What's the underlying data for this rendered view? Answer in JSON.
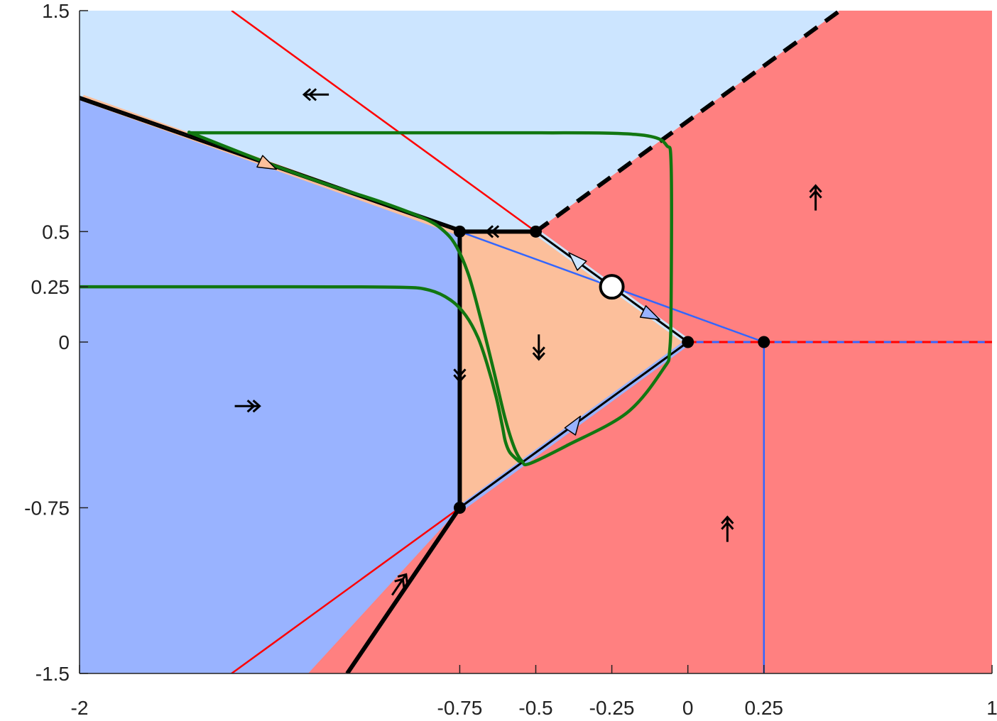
{
  "chart_data": {
    "type": "phase-portrait",
    "xlim": [
      -2,
      1
    ],
    "ylim": [
      -1.5,
      1.5
    ],
    "xticks": [
      {
        "value": -2,
        "label": "-2"
      },
      {
        "value": -0.75,
        "label": "-0.75"
      },
      {
        "value": -0.5,
        "label": "-0.5"
      },
      {
        "value": -0.25,
        "label": "-0.25"
      },
      {
        "value": 0,
        "label": "0"
      },
      {
        "value": 0.25,
        "label": "0.25"
      },
      {
        "value": 1,
        "label": "1"
      }
    ],
    "yticks": [
      {
        "value": 1.5,
        "label": "1.5"
      },
      {
        "value": 0.5,
        "label": "0.5"
      },
      {
        "value": 0.25,
        "label": "0.25"
      },
      {
        "value": 0,
        "label": "0"
      },
      {
        "value": -0.75,
        "label": "-0.75"
      },
      {
        "value": -1.5,
        "label": "-1.5"
      }
    ],
    "grid": false,
    "colors": {
      "light_blue_region": "#cce5ff",
      "blue_region": "#99b3ff",
      "red_region": "#ff8080",
      "peach_region": "#fcbf9b",
      "red_line": "#ff0000",
      "blue_line": "#3366ff",
      "trajectory": "#117711",
      "boundary": "#000000"
    },
    "regions": [
      {
        "name": "light-blue-region",
        "color": "#cce5ff",
        "points": [
          [
            -2,
            1.5
          ],
          [
            0.5,
            1.5
          ],
          [
            -0.5,
            0.5
          ],
          [
            -0.75,
            0.5
          ],
          [
            -2,
            1.1
          ]
        ]
      },
      {
        "name": "red-region",
        "color": "#ff8080",
        "points": [
          [
            0.5,
            1.5
          ],
          [
            1,
            1.5
          ],
          [
            1,
            -1.5
          ],
          [
            -1.25,
            -1.5
          ],
          [
            -0.75,
            -0.75
          ],
          [
            0,
            0
          ],
          [
            -0.5,
            0.5
          ]
        ]
      },
      {
        "name": "blue-region",
        "color": "#99b3ff",
        "points": [
          [
            -2,
            1.1
          ],
          [
            -0.75,
            0.5
          ],
          [
            -0.75,
            -0.75
          ],
          [
            -1.25,
            -1.5
          ],
          [
            -2,
            -1.5
          ]
        ]
      },
      {
        "name": "peach-region",
        "color": "#fcbf9b",
        "points": [
          [
            -0.75,
            0.5
          ],
          [
            -0.5,
            0.5
          ],
          [
            0,
            0
          ],
          [
            -0.75,
            -0.75
          ]
        ]
      }
    ],
    "lines": [
      {
        "name": "red-line-upper",
        "color": "#ff0000",
        "width": 2.5,
        "dash": "",
        "points": [
          [
            -1.5,
            1.5
          ],
          [
            -0.5,
            0.5
          ]
        ]
      },
      {
        "name": "red-line-lower",
        "color": "#ff0000",
        "width": 2.5,
        "dash": "",
        "points": [
          [
            -1.5,
            -1.5
          ],
          [
            -0.75,
            -0.75
          ]
        ]
      },
      {
        "name": "blue-line-diagonal",
        "color": "#3366ff",
        "width": 2.5,
        "dash": "",
        "points": [
          [
            -0.75,
            0.5
          ],
          [
            0.25,
            0
          ]
        ]
      },
      {
        "name": "blue-line-vertical",
        "color": "#3366ff",
        "width": 2.5,
        "dash": "",
        "points": [
          [
            0.25,
            0
          ],
          [
            0.25,
            -1.5
          ]
        ]
      },
      {
        "name": "dashed-red-blue-axis",
        "color": "#3366ff",
        "width": 3,
        "dash": "",
        "points": [
          [
            0,
            0
          ],
          [
            1,
            0
          ]
        ]
      },
      {
        "name": "dashed-red-axis",
        "color": "#ff0000",
        "width": 3,
        "dash": "12 10",
        "points": [
          [
            0,
            0
          ],
          [
            1,
            0
          ]
        ]
      },
      {
        "name": "black-dashed-boundary",
        "color": "#000000",
        "width": 6,
        "dash": "22 14",
        "points": [
          [
            -0.5,
            0.5
          ],
          [
            0.5,
            1.5
          ]
        ]
      },
      {
        "name": "sliding-segment-upper-left",
        "color": "#fcbf9b",
        "width": 9,
        "dash": "",
        "points": [
          [
            -1.99,
            1.105
          ],
          [
            -0.76,
            0.5
          ]
        ]
      },
      {
        "name": "sliding-segment-upper-right",
        "color": "#cce5ff",
        "width": 9,
        "dash": "",
        "points": [
          [
            -0.49,
            0.49
          ],
          [
            -0.01,
            0.01
          ]
        ]
      },
      {
        "name": "sliding-segment-lower",
        "color": "#99b3ff",
        "width": 9,
        "dash": "",
        "points": [
          [
            -0.74,
            -0.745
          ],
          [
            -0.01,
            -0.01
          ]
        ]
      },
      {
        "name": "black-boundary-upper-left",
        "color": "#000000",
        "width": 3,
        "dash": "",
        "points": [
          [
            -2,
            1.1
          ],
          [
            -0.75,
            0.5
          ]
        ]
      },
      {
        "name": "black-boundary-upper-left-2",
        "color": "#000000",
        "width": 3,
        "dash": "",
        "points": [
          [
            -2,
            1.11
          ],
          [
            -0.75,
            0.51
          ]
        ]
      },
      {
        "name": "black-boundary-upper-right",
        "color": "#000000",
        "width": 3,
        "dash": "",
        "points": [
          [
            -0.5,
            0.5
          ],
          [
            0,
            0
          ]
        ]
      },
      {
        "name": "black-boundary-lower",
        "color": "#000000",
        "width": 3,
        "dash": "",
        "points": [
          [
            -0.75,
            -0.75
          ],
          [
            0,
            0
          ]
        ]
      },
      {
        "name": "black-thick-top",
        "color": "#000000",
        "width": 6,
        "dash": "",
        "points": [
          [
            -0.75,
            0.5
          ],
          [
            -0.5,
            0.5
          ]
        ]
      },
      {
        "name": "black-thick-vertical",
        "color": "#000000",
        "width": 6,
        "dash": "",
        "points": [
          [
            -0.75,
            0.5
          ],
          [
            -0.75,
            -0.75
          ]
        ]
      },
      {
        "name": "black-thick-lower",
        "color": "#000000",
        "width": 6,
        "dash": "",
        "points": [
          [
            -0.75,
            -0.75
          ],
          [
            -1.12,
            -1.5
          ]
        ]
      }
    ],
    "trajectories": [
      {
        "name": "green-trajectory-loop",
        "color": "#117711",
        "width": 4.5,
        "points": [
          [
            -1.64,
            0.95
          ],
          [
            -1.4,
            0.82
          ],
          [
            -1.2,
            0.72
          ],
          [
            -1.0,
            0.63
          ],
          [
            -0.86,
            0.555
          ],
          [
            -0.8,
            0.5
          ],
          [
            -0.76,
            0.43
          ],
          [
            -0.72,
            0.3
          ],
          [
            -0.68,
            0.1
          ],
          [
            -0.64,
            -0.12
          ],
          [
            -0.6,
            -0.35
          ],
          [
            -0.57,
            -0.48
          ],
          [
            -0.545,
            -0.54
          ],
          [
            -0.52,
            -0.55
          ],
          [
            -0.4,
            -0.47
          ],
          [
            -0.2,
            -0.32
          ],
          [
            -0.08,
            -0.12
          ],
          [
            -0.06,
            -0.04
          ],
          [
            -0.055,
            0.2
          ],
          [
            -0.055,
            0.8
          ],
          [
            -0.07,
            0.89
          ],
          [
            -0.12,
            0.93
          ],
          [
            -0.25,
            0.945
          ],
          [
            -0.5,
            0.947
          ],
          [
            -1.0,
            0.947
          ],
          [
            -1.64,
            0.947
          ]
        ]
      },
      {
        "name": "green-trajectory-incoming",
        "color": "#117711",
        "width": 4.5,
        "points": [
          [
            -2,
            0.25
          ],
          [
            -1.3,
            0.25
          ],
          [
            -0.95,
            0.248
          ],
          [
            -0.85,
            0.235
          ],
          [
            -0.78,
            0.19
          ],
          [
            -0.73,
            0.12
          ],
          [
            -0.69,
            0.02
          ],
          [
            -0.66,
            -0.1
          ],
          [
            -0.63,
            -0.25
          ],
          [
            -0.61,
            -0.38
          ],
          [
            -0.6,
            -0.45
          ],
          [
            -0.585,
            -0.5
          ],
          [
            -0.555,
            -0.54
          ]
        ]
      }
    ],
    "direction_arrows": [
      {
        "name": "left-double-arrow",
        "x": -1.22,
        "y": 1.12,
        "dir": "left",
        "kind": "double-chevron"
      },
      {
        "name": "right-double-arrow",
        "x": -1.45,
        "y": -0.29,
        "dir": "right",
        "kind": "double-chevron"
      },
      {
        "name": "up-double-arrow-upper",
        "x": 0.42,
        "y": 0.65,
        "dir": "up",
        "kind": "double-chevron"
      },
      {
        "name": "up-double-arrow-lower",
        "x": 0.13,
        "y": -0.85,
        "dir": "up",
        "kind": "double-chevron"
      },
      {
        "name": "down-double-arrow-center",
        "x": -0.49,
        "y": -0.02,
        "dir": "down",
        "kind": "double-chevron"
      },
      {
        "name": "down-double-arrow-vertical",
        "x": -0.75,
        "y": -0.12,
        "dir": "down",
        "kind": "double-chevron"
      },
      {
        "name": "left-double-arrow-top",
        "x": -0.62,
        "y": 0.5,
        "dir": "left",
        "kind": "double-chevron"
      },
      {
        "name": "up-right-double-arrow",
        "x": -0.95,
        "y": -1.1,
        "dir": "up-right",
        "kind": "double-chevron"
      },
      {
        "name": "flow-triangle-upper-left",
        "x": -1.38,
        "y": 0.8,
        "dir": "down-right",
        "kind": "triangle",
        "fill": "#fcbf9b"
      },
      {
        "name": "flow-triangle-upper-right-a",
        "x": -0.37,
        "y": 0.375,
        "dir": "up-left",
        "kind": "triangle",
        "fill": "#cce5ff"
      },
      {
        "name": "flow-triangle-upper-right-b",
        "x": -0.12,
        "y": 0.12,
        "dir": "down-right",
        "kind": "triangle",
        "fill": "#99b3ff"
      },
      {
        "name": "flow-triangle-lower",
        "x": -0.37,
        "y": -0.37,
        "dir": "up-right",
        "kind": "triangle",
        "fill": "#99b3ff"
      }
    ],
    "points": [
      {
        "name": "point-left-top",
        "x": -0.75,
        "y": 0.5,
        "kind": "filled"
      },
      {
        "name": "point-mid-top",
        "x": -0.5,
        "y": 0.5,
        "kind": "filled"
      },
      {
        "name": "point-origin",
        "x": 0,
        "y": 0,
        "kind": "filled"
      },
      {
        "name": "point-right",
        "x": 0.25,
        "y": 0,
        "kind": "filled"
      },
      {
        "name": "point-left-bottom",
        "x": -0.75,
        "y": -0.75,
        "kind": "filled"
      },
      {
        "name": "equilibrium-open",
        "x": -0.25,
        "y": 0.25,
        "kind": "open"
      }
    ]
  }
}
